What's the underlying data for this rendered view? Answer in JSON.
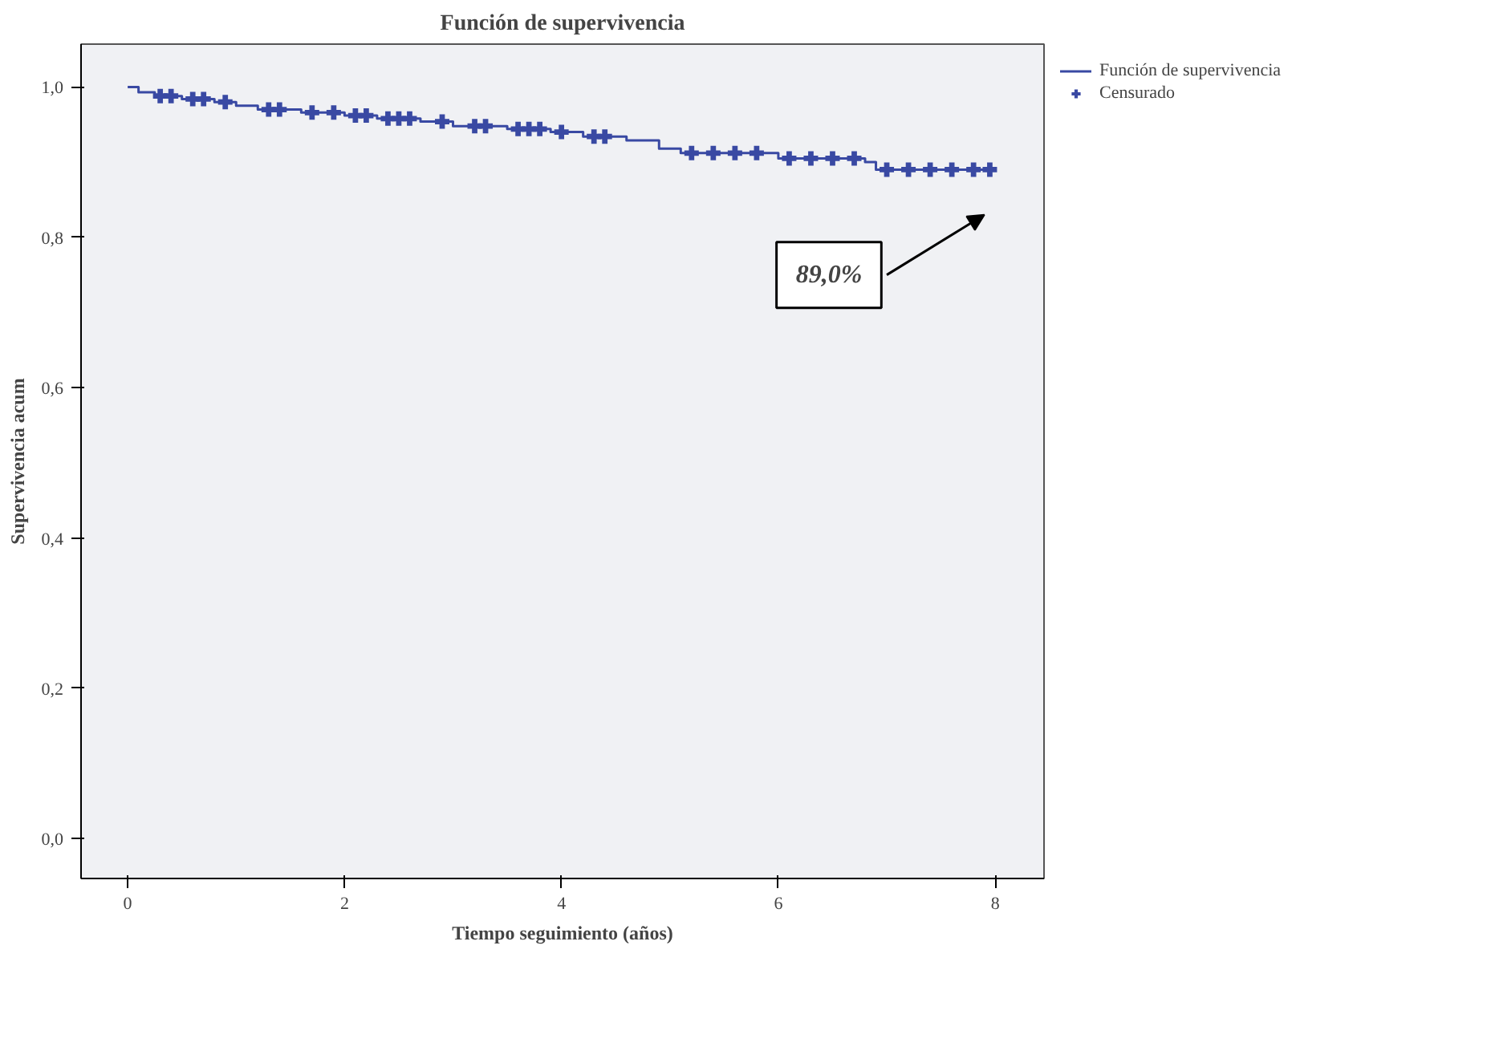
{
  "chart_data": {
    "type": "step",
    "title": "Función de supervivencia",
    "xlabel": "Tiempo seguimiento (años)",
    "ylabel": "Supervivencia acum",
    "xlim": [
      -0.43,
      8.45
    ],
    "ylim": [
      -0.053,
      1.057
    ],
    "xticks": [
      0,
      2,
      4,
      6,
      8
    ],
    "yticks": [
      {
        "value": 0.0,
        "label": "0,0"
      },
      {
        "value": 0.2,
        "label": "0,2"
      },
      {
        "value": 0.4,
        "label": "0,4"
      },
      {
        "value": 0.6,
        "label": "0,6"
      },
      {
        "value": 0.8,
        "label": "0,8"
      },
      {
        "value": 1.0,
        "label": "1,0"
      }
    ],
    "grid": false,
    "legend": "top right",
    "annotations": [
      "89,0%"
    ],
    "series": [
      {
        "name": "Función de supervivencia",
        "color": "#3949a3",
        "x": [
          0,
          0.1,
          0.1,
          0.25,
          0.25,
          0.5,
          0.5,
          0.8,
          0.8,
          1.0,
          1.0,
          1.2,
          1.2,
          1.6,
          1.6,
          2.0,
          2.0,
          2.3,
          2.3,
          2.7,
          2.7,
          3.0,
          3.0,
          3.5,
          3.5,
          3.9,
          3.9,
          4.2,
          4.2,
          4.6,
          4.6,
          4.9,
          4.9,
          5.1,
          5.1,
          6.0,
          6.0,
          6.8,
          6.8,
          6.9,
          6.9,
          8.0
        ],
        "values": [
          1.0,
          1.0,
          0.993,
          0.993,
          0.988,
          0.988,
          0.984,
          0.984,
          0.98,
          0.98,
          0.975,
          0.975,
          0.97,
          0.97,
          0.966,
          0.966,
          0.962,
          0.962,
          0.958,
          0.958,
          0.954,
          0.954,
          0.948,
          0.948,
          0.944,
          0.944,
          0.94,
          0.94,
          0.934,
          0.934,
          0.929,
          0.929,
          0.918,
          0.918,
          0.912,
          0.912,
          0.905,
          0.905,
          0.9,
          0.9,
          0.89,
          0.89
        ]
      },
      {
        "name": "Censurado",
        "type": "scatter",
        "marker": "cross",
        "color": "#3949a3",
        "x": [
          0.3,
          0.4,
          0.6,
          0.7,
          0.9,
          1.3,
          1.4,
          1.7,
          1.9,
          2.1,
          2.2,
          2.4,
          2.5,
          2.6,
          2.9,
          3.2,
          3.3,
          3.6,
          3.7,
          3.8,
          4.0,
          4.3,
          4.4,
          5.2,
          5.4,
          5.6,
          5.8,
          6.1,
          6.3,
          6.5,
          6.7,
          7.0,
          7.2,
          7.4,
          7.6,
          7.8,
          7.95
        ],
        "values": [
          0.988,
          0.988,
          0.984,
          0.984,
          0.98,
          0.97,
          0.97,
          0.966,
          0.966,
          0.962,
          0.962,
          0.958,
          0.958,
          0.958,
          0.954,
          0.948,
          0.948,
          0.944,
          0.944,
          0.944,
          0.94,
          0.934,
          0.934,
          0.912,
          0.912,
          0.912,
          0.912,
          0.905,
          0.905,
          0.905,
          0.905,
          0.89,
          0.89,
          0.89,
          0.89,
          0.89,
          0.89
        ]
      }
    ]
  }
}
